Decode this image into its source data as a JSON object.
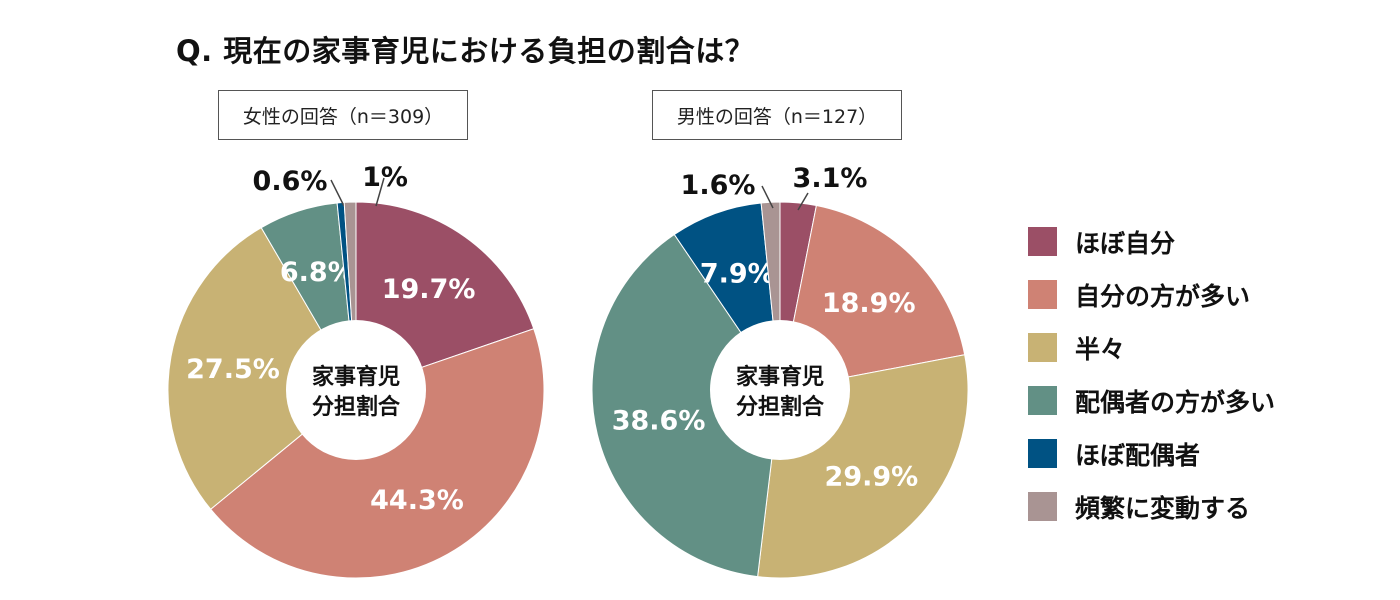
{
  "chart_data": [
    {
      "type": "pie",
      "subtitle": "女性の回答（n＝309）",
      "center_label": [
        "家事育児",
        "分担割合"
      ],
      "categories": [
        "ほぼ自分",
        "自分の方が多い",
        "半々",
        "配偶者の方が多い",
        "ほぼ配偶者",
        "頻繁に変動する"
      ],
      "values": [
        19.7,
        44.3,
        27.5,
        6.8,
        0.6,
        1
      ],
      "labels": [
        "19.7%",
        "44.3%",
        "27.5%",
        "6.8%",
        "0.6%",
        "1%"
      ]
    },
    {
      "type": "pie",
      "subtitle": "男性の回答（n＝127）",
      "center_label": [
        "家事育児",
        "分担割合"
      ],
      "categories": [
        "ほぼ自分",
        "自分の方が多い",
        "半々",
        "配偶者の方が多い",
        "ほぼ配偶者",
        "頻繁に変動する"
      ],
      "values": [
        3.1,
        18.9,
        29.9,
        38.6,
        7.9,
        1.6
      ],
      "labels": [
        "3.1%",
        "18.9%",
        "29.9%",
        "38.6%",
        "7.9%",
        "1.6%"
      ]
    }
  ],
  "title": "Q. 現在の家事育児における負担の割合は？",
  "legend": [
    {
      "label": "ほぼ自分",
      "color": "#9b4f66"
    },
    {
      "label": "自分の方が多い",
      "color": "#cf8274"
    },
    {
      "label": "半々",
      "color": "#c8b274"
    },
    {
      "label": "配偶者の方が多い",
      "color": "#629085"
    },
    {
      "label": "ほぼ配偶者",
      "color": "#005283"
    },
    {
      "label": "頻繁に変動する",
      "color": "#a99493"
    }
  ]
}
